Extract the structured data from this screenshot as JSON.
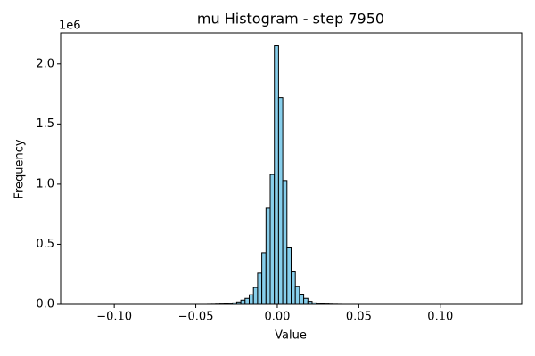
{
  "chart_data": {
    "type": "histogram",
    "title": "mu Histogram - step 7950",
    "x_label": "Value",
    "y_label": "Frequency",
    "y_offset_label": "1e6",
    "color": "#87ceeb",
    "edge_color": "#000000",
    "bins": [
      -0.12,
      -0.11743,
      -0.11486,
      -0.11229,
      -0.10972,
      -0.10715,
      -0.10458,
      -0.10201,
      -0.09944,
      -0.09687,
      -0.0943,
      -0.09173,
      -0.08916,
      -0.08659,
      -0.08402,
      -0.08145,
      -0.07888,
      -0.07631,
      -0.07374,
      -0.07117,
      -0.0686,
      -0.06603,
      -0.06346,
      -0.06089,
      -0.05832,
      -0.05575,
      -0.05318,
      -0.05061,
      -0.04804,
      -0.04547,
      -0.0429,
      -0.04033,
      -0.03776,
      -0.03519,
      -0.03262,
      -0.03005,
      -0.02748,
      -0.02491,
      -0.02234,
      -0.01977,
      -0.0172,
      -0.01463,
      -0.01206,
      -0.00949,
      -0.00692,
      -0.00435,
      -0.00178,
      0.00079,
      0.00336,
      0.00593,
      0.0085,
      0.01107,
      0.01364,
      0.01621,
      0.01878,
      0.02135,
      0.02392,
      0.02649,
      0.02906,
      0.03163,
      0.0342,
      0.03677,
      0.03934,
      0.04191,
      0.04448,
      0.04705,
      0.04962,
      0.05219,
      0.05476,
      0.05733,
      0.0599,
      0.06247,
      0.06504,
      0.06761,
      0.07018,
      0.07275,
      0.07532,
      0.07789,
      0.08046,
      0.08303,
      0.0856,
      0.08817,
      0.09074,
      0.09331,
      0.09588,
      0.09845,
      0.10102,
      0.10359,
      0.10616,
      0.10873,
      0.1113,
      0.11387,
      0.11644,
      0.11901,
      0.12158,
      0.12415,
      0.12672,
      0.12929,
      0.13186,
      0.13443,
      0.137
    ],
    "counts": [
      1,
      0,
      0,
      0,
      0,
      0,
      0,
      0,
      0,
      0,
      0,
      0,
      0,
      0,
      0,
      0,
      0,
      0,
      0,
      0,
      0,
      0,
      0,
      0,
      0,
      0,
      0,
      0,
      0,
      0,
      500,
      1000,
      2000,
      3000,
      5000,
      8000,
      12000,
      20000,
      35000,
      50000,
      80000,
      140000,
      260000,
      430000,
      800000,
      1080000,
      2150000,
      1720000,
      1030000,
      470000,
      270000,
      150000,
      85000,
      50000,
      25000,
      12000,
      8000,
      5000,
      3000,
      2000,
      1000,
      500,
      0,
      0,
      0,
      0,
      0,
      0,
      0,
      0,
      0,
      0,
      0,
      0,
      0,
      0,
      0,
      0,
      0,
      0,
      0,
      0,
      0,
      0,
      0,
      0,
      0,
      0,
      0,
      0,
      0,
      0,
      0,
      0,
      0,
      0,
      0,
      0,
      0,
      1
    ],
    "xlim": [
      -0.1329,
      0.1499
    ],
    "xticks": [
      {
        "value": -0.1,
        "label": "−0.10"
      },
      {
        "value": -0.05,
        "label": "−0.05"
      },
      {
        "value": 0,
        "label": "0.00"
      },
      {
        "value": 0.05,
        "label": "0.05"
      },
      {
        "value": 0.1,
        "label": "0.10"
      }
    ],
    "ylim": [
      0,
      2257500
    ],
    "yticks": [
      {
        "value": 0,
        "label": "0.0"
      },
      {
        "value": 500000,
        "label": "0.5"
      },
      {
        "value": 1000000,
        "label": "1.0"
      },
      {
        "value": 1500000,
        "label": "1.5"
      },
      {
        "value": 2000000,
        "label": "2.0"
      }
    ]
  }
}
